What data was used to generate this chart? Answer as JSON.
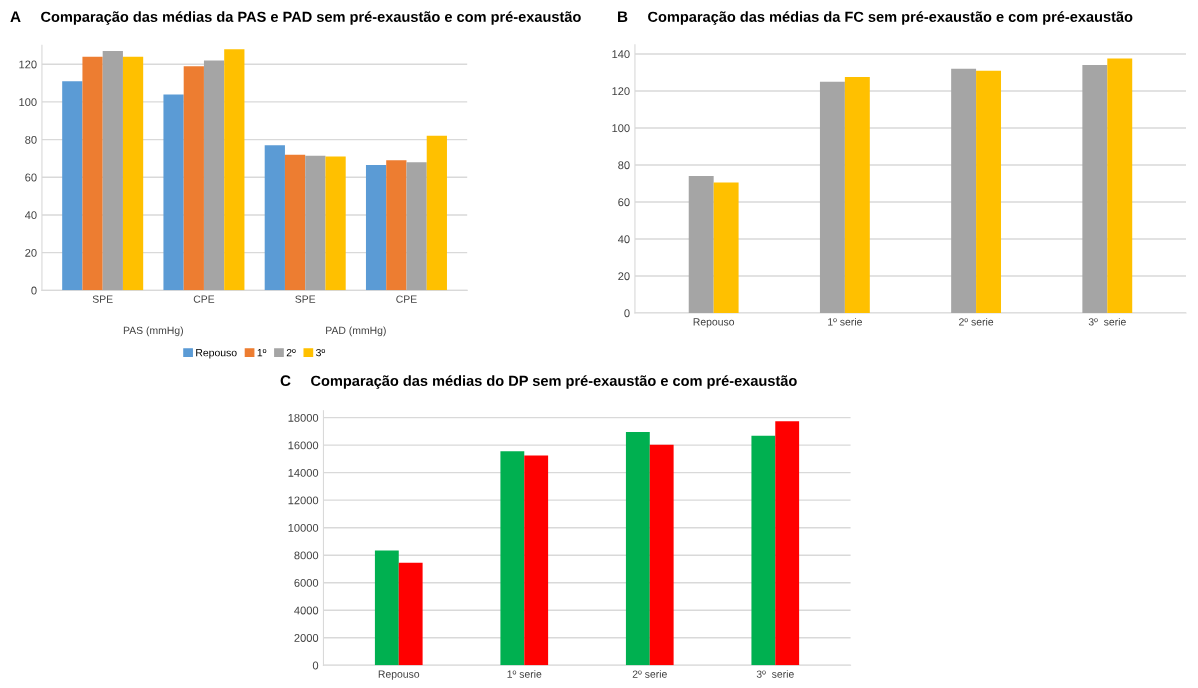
{
  "chart_data": [
    {
      "type": "bar",
      "title": "Comparação das médias da PAS e PAD sem pré-exaustão e com pré-exaustão",
      "annotations": [
        "A",
        "PAS (mmHg)",
        "PAD (mmHg)"
      ],
      "categories": [
        "SPE",
        "CPE",
        "SPE",
        "CPE"
      ],
      "series": [
        {
          "name": "Repouso",
          "color": "#5b9bd5",
          "values": [
            111,
            104,
            77,
            66.5
          ]
        },
        {
          "name": "1º",
          "color": "#ed7d31",
          "values": [
            124,
            119,
            72,
            69
          ]
        },
        {
          "name": "2º",
          "color": "#a5a5a5",
          "values": [
            127,
            122,
            71.5,
            68
          ]
        },
        {
          "name": "3º",
          "color": "#ffc000",
          "values": [
            124,
            128,
            71,
            82
          ]
        }
      ],
      "ylim": [
        0,
        130
      ],
      "yticks": [
        0,
        20,
        40,
        60,
        80,
        100,
        120
      ],
      "grid": "y",
      "legend": "bottom"
    },
    {
      "type": "bar",
      "title": "Comparação das médias da FC sem pré-exaustão e com pré-exaustão",
      "annotations": [
        "B"
      ],
      "categories": [
        "Repouso",
        "1º serie",
        "2º serie",
        "3º  serie"
      ],
      "series": [
        {
          "color": "#a5a5a5",
          "values": [
            74,
            125,
            132,
            134
          ]
        },
        {
          "color": "#ffc000",
          "values": [
            70.5,
            127.5,
            131,
            137.5
          ]
        }
      ],
      "ylim": [
        0,
        145
      ],
      "yticks": [
        0,
        20,
        40,
        60,
        80,
        100,
        120,
        140
      ],
      "grid": "y"
    },
    {
      "type": "bar",
      "title": "Comparação das médias do DP sem pré-exaustão e com pré-exaustão",
      "annotations": [
        "C"
      ],
      "categories": [
        "Repouso",
        "1º serie",
        "2º serie",
        "3º  serie"
      ],
      "series": [
        {
          "color": "#00b050",
          "values": [
            8340,
            15550,
            16960,
            16680
          ]
        },
        {
          "color": "#ff0000",
          "values": [
            7450,
            15250,
            16020,
            17730
          ]
        }
      ],
      "ylim": [
        0,
        18500
      ],
      "yticks": [
        0,
        2000,
        4000,
        6000,
        8000,
        10000,
        12000,
        14000,
        16000,
        18000
      ],
      "grid": "y"
    }
  ]
}
